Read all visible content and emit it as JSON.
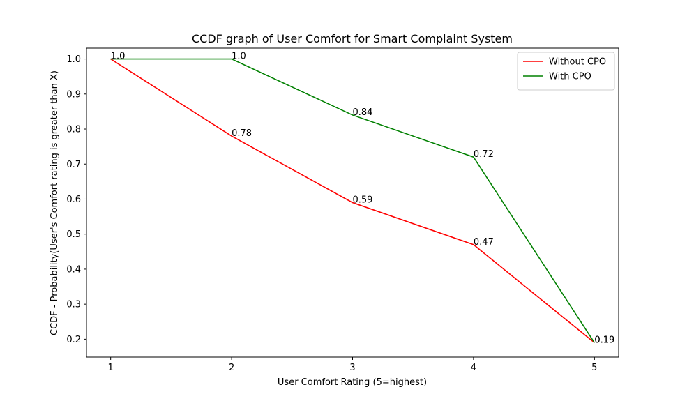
{
  "chart_data": {
    "type": "line",
    "title": "CCDF graph of User Comfort for Smart Complaint System",
    "xlabel": "User Comfort Rating (5=highest)",
    "ylabel": "CCDF - Probability(User's Comfort rating is greater than X)",
    "x": [
      1,
      2,
      3,
      4,
      5
    ],
    "xlim": [
      0.8,
      5.2
    ],
    "ylim": [
      0.149,
      1.031
    ],
    "xticks": [
      "1",
      "2",
      "3",
      "4",
      "5"
    ],
    "yticks": [
      "0.2",
      "0.3",
      "0.4",
      "0.5",
      "0.6",
      "0.7",
      "0.8",
      "0.9",
      "1.0"
    ],
    "grid": false,
    "legend_position": "top-right",
    "series": [
      {
        "name": "Without CPO",
        "color": "#ff0000",
        "values": [
          1.0,
          0.78,
          0.59,
          0.47,
          0.19
        ],
        "labels": [
          "1.0",
          "0.78",
          "0.59",
          "0.47",
          "0.19"
        ]
      },
      {
        "name": "With CPO",
        "color": "#008000",
        "values": [
          1.0,
          1.0,
          0.84,
          0.72,
          0.19
        ],
        "labels": [
          "1.0",
          "1.0",
          "0.84",
          "0.72",
          "0.19"
        ]
      }
    ]
  }
}
